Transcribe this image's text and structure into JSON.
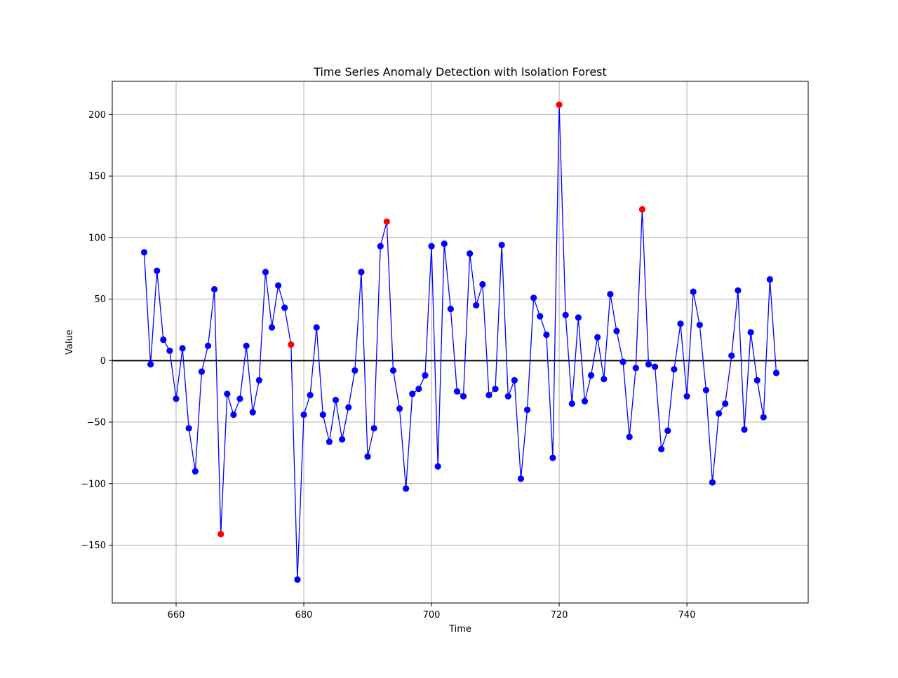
{
  "chart_data": {
    "type": "scatter",
    "title": "Time Series Anomaly Detection with Isolation Forest",
    "xlabel": "Time",
    "ylabel": "Value",
    "xlim": [
      650,
      759
    ],
    "ylim": [
      -197,
      227
    ],
    "xticks": [
      660,
      680,
      700,
      720,
      740
    ],
    "yticks": [
      -150,
      -100,
      -50,
      0,
      50,
      100,
      150,
      200
    ],
    "grid": true,
    "baseline_y": 0,
    "colors": {
      "line": "#0000ff",
      "normal": "#0000ff",
      "anomaly": "#ff0000",
      "baseline": "#000000",
      "grid": "#b0b0b0"
    },
    "x_start": 655,
    "values": [
      88,
      -3,
      73,
      17,
      8,
      -31,
      10,
      -55,
      -90,
      -9,
      12,
      58,
      -141,
      -27,
      -44,
      -31,
      12,
      -42,
      -16,
      72,
      27,
      61,
      43,
      13,
      -178,
      -44,
      -28,
      27,
      -44,
      -66,
      -32,
      -64,
      -38,
      -8,
      72,
      -78,
      -55,
      93,
      113,
      -8,
      -39,
      -104,
      -27,
      -23,
      -12,
      93,
      -86,
      95,
      42,
      -25,
      -29,
      87,
      45,
      62,
      -28,
      -23,
      94,
      -29,
      -16,
      -96,
      -40,
      51,
      36,
      21,
      -79,
      208,
      37,
      -35,
      35,
      -33,
      -12,
      19,
      -15,
      54,
      24,
      -1,
      -62,
      -6,
      123,
      -3,
      -5,
      -72,
      -57,
      -7,
      30,
      -29,
      56,
      29,
      -24,
      -99,
      -43,
      -35,
      4,
      57,
      -56,
      23,
      -16,
      -46,
      66,
      -10
    ],
    "anomaly_x": [
      667,
      678,
      693,
      720,
      733
    ]
  }
}
